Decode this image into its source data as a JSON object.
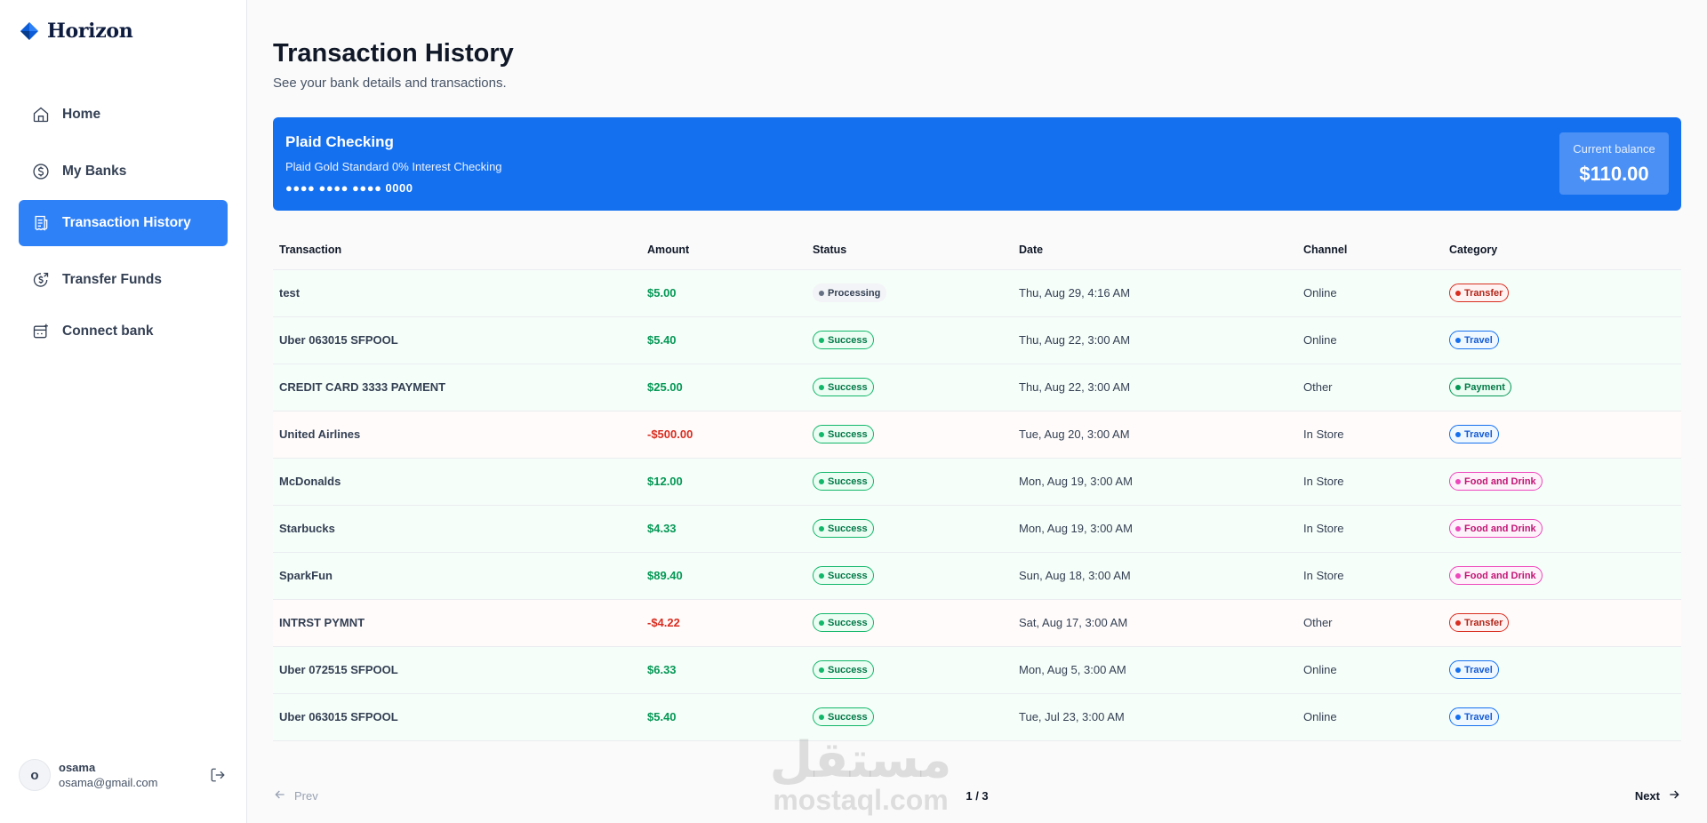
{
  "brand": {
    "name": "Horizon"
  },
  "nav": [
    {
      "label": "Home",
      "icon": "home-icon",
      "active": false
    },
    {
      "label": "My Banks",
      "icon": "dollar-icon",
      "active": false
    },
    {
      "label": "Transaction History",
      "icon": "receipt-icon",
      "active": true
    },
    {
      "label": "Transfer Funds",
      "icon": "money-send-icon",
      "active": false
    },
    {
      "label": "Connect bank",
      "icon": "connect-bank-icon",
      "active": false
    }
  ],
  "user": {
    "initial": "o",
    "name": "osama",
    "email": "osama@gmail.com"
  },
  "page": {
    "title": "Transaction History",
    "subtitle": "See your bank details and transactions."
  },
  "bank_card": {
    "name": "Plaid Checking",
    "official_name": "Plaid Gold Standard 0% Interest Checking",
    "mask": "●●●● ●●●● ●●●● 0000",
    "balance_label": "Current balance",
    "balance": "$110.00"
  },
  "table": {
    "headers": [
      "Transaction",
      "Amount",
      "Status",
      "Date",
      "Channel",
      "Category"
    ],
    "rows": [
      {
        "name": "test",
        "amount": "$5.00",
        "sign": "pos",
        "status": "Processing",
        "date": "Thu, Aug 29, 4:16 AM",
        "channel": "Online",
        "category": "Transfer"
      },
      {
        "name": "Uber 063015 SFPOOL",
        "amount": "$5.40",
        "sign": "pos",
        "status": "Success",
        "date": "Thu, Aug 22, 3:00 AM",
        "channel": "Online",
        "category": "Travel"
      },
      {
        "name": "CREDIT CARD 3333 PAYMENT",
        "amount": "$25.00",
        "sign": "pos",
        "status": "Success",
        "date": "Thu, Aug 22, 3:00 AM",
        "channel": "Other",
        "category": "Payment"
      },
      {
        "name": "United Airlines",
        "amount": "-$500.00",
        "sign": "neg",
        "status": "Success",
        "date": "Tue, Aug 20, 3:00 AM",
        "channel": "In Store",
        "category": "Travel"
      },
      {
        "name": "McDonalds",
        "amount": "$12.00",
        "sign": "pos",
        "status": "Success",
        "date": "Mon, Aug 19, 3:00 AM",
        "channel": "In Store",
        "category": "Food and Drink"
      },
      {
        "name": "Starbucks",
        "amount": "$4.33",
        "sign": "pos",
        "status": "Success",
        "date": "Mon, Aug 19, 3:00 AM",
        "channel": "In Store",
        "category": "Food and Drink"
      },
      {
        "name": "SparkFun",
        "amount": "$89.40",
        "sign": "pos",
        "status": "Success",
        "date": "Sun, Aug 18, 3:00 AM",
        "channel": "In Store",
        "category": "Food and Drink"
      },
      {
        "name": "INTRST PYMNT",
        "amount": "-$4.22",
        "sign": "neg",
        "status": "Success",
        "date": "Sat, Aug 17, 3:00 AM",
        "channel": "Other",
        "category": "Transfer"
      },
      {
        "name": "Uber 072515 SFPOOL",
        "amount": "$6.33",
        "sign": "pos",
        "status": "Success",
        "date": "Mon, Aug 5, 3:00 AM",
        "channel": "Online",
        "category": "Travel"
      },
      {
        "name": "Uber 063015 SFPOOL",
        "amount": "$5.40",
        "sign": "pos",
        "status": "Success",
        "date": "Tue, Jul 23, 3:00 AM",
        "channel": "Online",
        "category": "Travel"
      }
    ]
  },
  "pagination": {
    "prev": "Prev",
    "next": "Next",
    "count": "1 / 3"
  },
  "watermark": {
    "arabic": "مستقل",
    "latin": "mostaql.com"
  },
  "colors": {
    "accent": "#2f81f7",
    "card": "#1570ef",
    "positive": "#039855",
    "negative": "#d92d20"
  }
}
